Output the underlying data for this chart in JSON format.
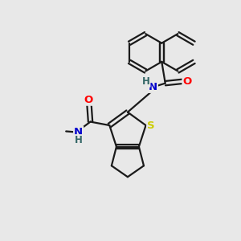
{
  "bg_color": "#e8e8e8",
  "bond_color": "#1a1a1a",
  "atom_colors": {
    "N": "#0000cc",
    "O": "#ff0000",
    "S": "#cccc00",
    "H": "#336666",
    "C": "#1a1a1a"
  },
  "line_width": 1.6,
  "font_size_atom": 8.5,
  "figsize": [
    3.0,
    3.0
  ],
  "dpi": 100
}
